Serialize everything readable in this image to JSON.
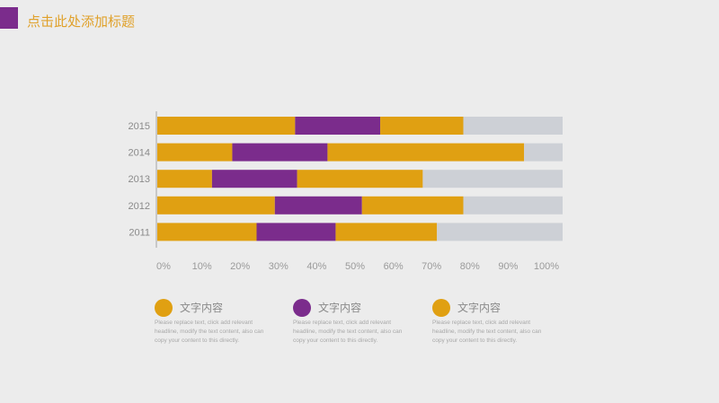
{
  "header": {
    "title": "点击此处添加标题"
  },
  "colors": {
    "gold": "#e0a012",
    "purple": "#7b2c8c",
    "gray": "#cdd0d6",
    "axis": "#b0b0b0"
  },
  "chart_data": {
    "type": "bar",
    "orientation": "horizontal",
    "stacked": true,
    "categories": [
      "2015",
      "2014",
      "2013",
      "2012",
      "2011"
    ],
    "series": [
      {
        "color": "#e0a012",
        "values": [
          34,
          18.5,
          13.5,
          29,
          24.5
        ]
      },
      {
        "color": "#7b2c8c",
        "values": [
          21,
          23.5,
          21,
          21.5,
          19.5
        ]
      },
      {
        "color": "#e0a012",
        "values": [
          20.5,
          48.5,
          31,
          25,
          25
        ]
      },
      {
        "color": "#cdd0d6",
        "values": [
          24.5,
          9.5,
          34.5,
          24.5,
          31
        ]
      }
    ],
    "x_ticks": [
      "0%",
      "10%",
      "20%",
      "30%",
      "40%",
      "50%",
      "60%",
      "70%",
      "80%",
      "90%",
      "100%"
    ],
    "xlim": [
      0,
      100
    ],
    "grid": false,
    "title": "",
    "xlabel": "",
    "ylabel": ""
  },
  "legend": [
    {
      "title": "文字内容",
      "color": "#e0a012",
      "desc": "Please replace text, click add relevant headline, modify the text content, also can copy your content to this directly."
    },
    {
      "title": "文字内容",
      "color": "#7b2c8c",
      "desc": "Please replace text, click add relevant headline, modify the text content, also can copy your content to this directly."
    },
    {
      "title": "文字内容",
      "color": "#e0a012",
      "desc": "Please replace text, click add relevant headline, modify the text content, also can copy your content to this directly."
    }
  ]
}
